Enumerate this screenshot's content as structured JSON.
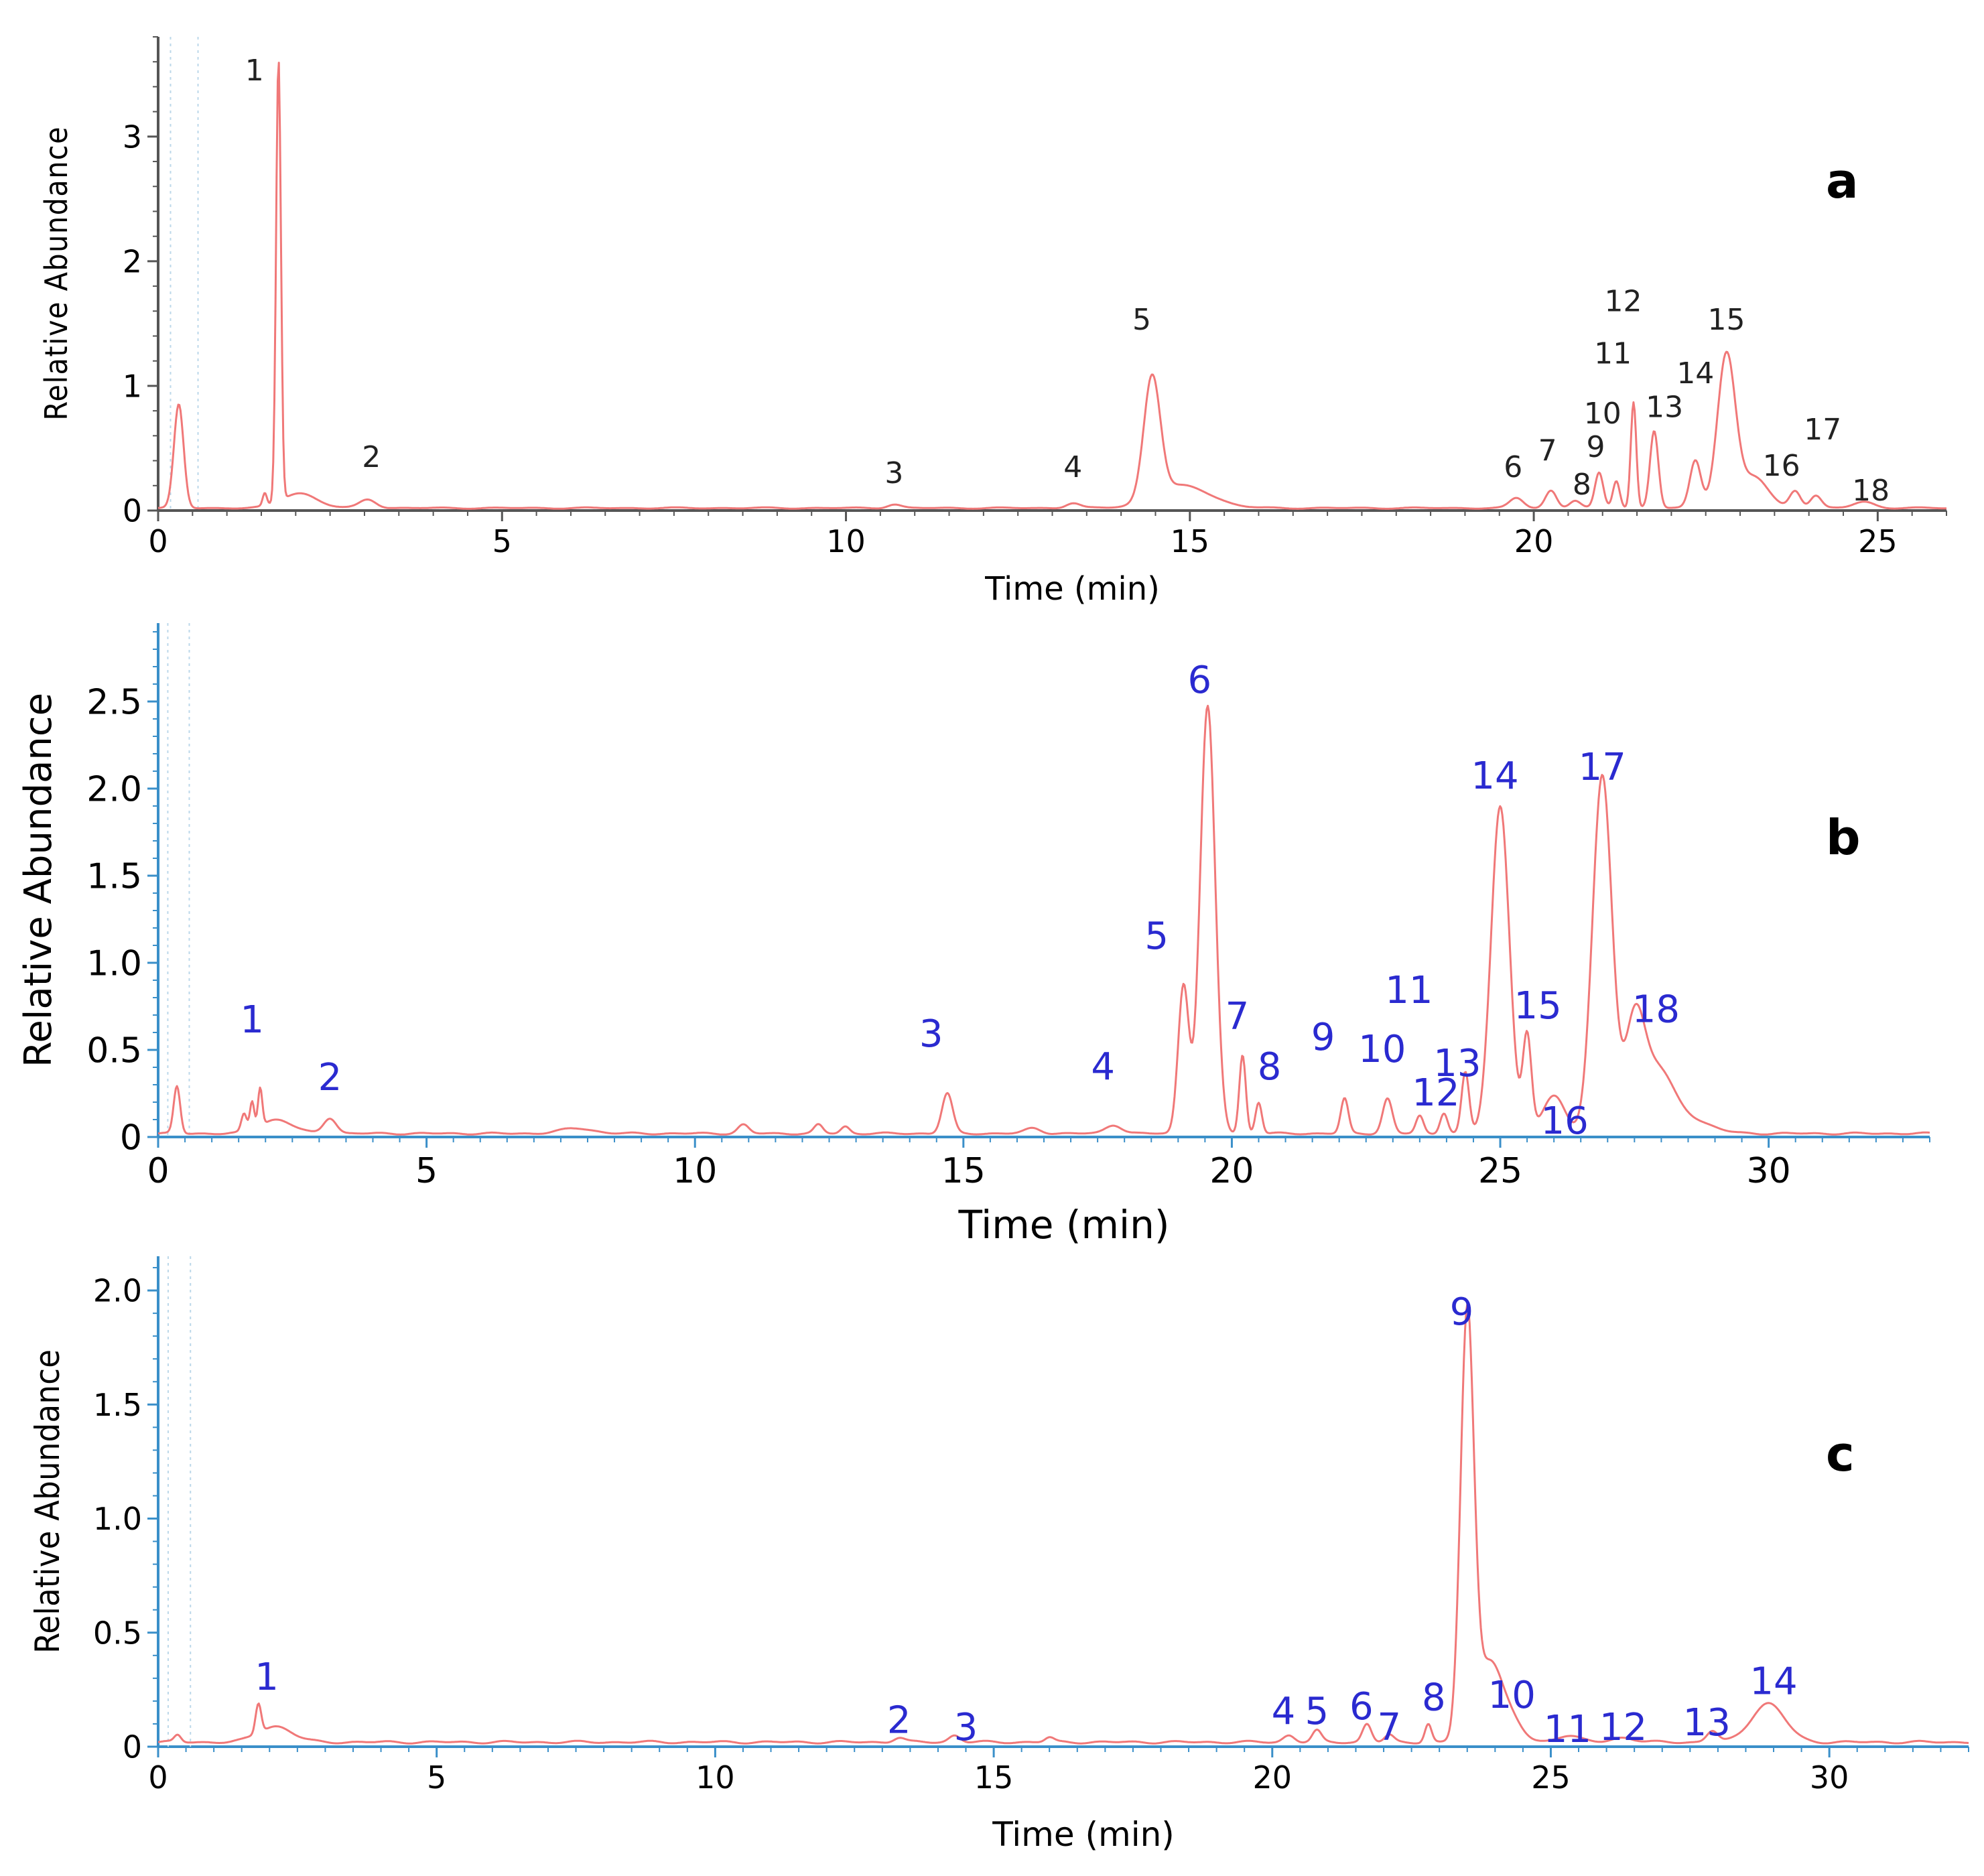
{
  "figure": {
    "panels": [
      "a",
      "b",
      "c"
    ]
  },
  "colors": {
    "trace": "#f07878",
    "axis_a": "#555555",
    "axis_bc": "#3a8fc9",
    "peak_label_a": "#222222",
    "peak_label_bc": "#2a2ad0",
    "panel_letter": "#000000",
    "tick_text": "#000000"
  },
  "chart_data": [
    {
      "id": "a",
      "type": "line",
      "panel_label": "a",
      "title": "",
      "xlabel": "Time (min)",
      "ylabel": "Relative Abundance",
      "xlim": [
        0,
        26
      ],
      "ylim": [
        0,
        3.8
      ],
      "xticks": [
        0,
        5,
        10,
        15,
        20,
        25
      ],
      "xtick_labels": [
        "0",
        "5",
        "10",
        "15",
        "20",
        "25"
      ],
      "yticks": [
        0,
        1,
        2,
        3
      ],
      "ytick_labels": [
        "0",
        "1",
        "2",
        "3"
      ],
      "grid": false,
      "baseline": 0.02,
      "peaks": [
        {
          "t": 0.3,
          "h": 0.83,
          "w": 0.07
        },
        {
          "t": 1.55,
          "h": 0.1,
          "w": 0.03
        },
        {
          "t": 1.75,
          "h": 3.55,
          "w": 0.035
        },
        {
          "t": 2.05,
          "h": 0.12,
          "w": 0.25
        },
        {
          "t": 3.05,
          "h": 0.07,
          "w": 0.12
        },
        {
          "t": 10.7,
          "h": 0.03,
          "w": 0.1
        },
        {
          "t": 13.3,
          "h": 0.04,
          "w": 0.1
        },
        {
          "t": 14.45,
          "h": 0.98,
          "w": 0.12
        },
        {
          "t": 14.9,
          "h": 0.18,
          "w": 0.4
        },
        {
          "t": 19.75,
          "h": 0.08,
          "w": 0.1
        },
        {
          "t": 20.25,
          "h": 0.14,
          "w": 0.08
        },
        {
          "t": 20.6,
          "h": 0.06,
          "w": 0.08
        },
        {
          "t": 20.95,
          "h": 0.28,
          "w": 0.06
        },
        {
          "t": 21.2,
          "h": 0.22,
          "w": 0.05
        },
        {
          "t": 21.45,
          "h": 0.85,
          "w": 0.04
        },
        {
          "t": 21.75,
          "h": 0.62,
          "w": 0.06
        },
        {
          "t": 22.35,
          "h": 0.38,
          "w": 0.08
        },
        {
          "t": 22.8,
          "h": 1.22,
          "w": 0.13
        },
        {
          "t": 23.2,
          "h": 0.25,
          "w": 0.2
        },
        {
          "t": 23.8,
          "h": 0.14,
          "w": 0.08
        },
        {
          "t": 24.1,
          "h": 0.1,
          "w": 0.08
        },
        {
          "t": 24.8,
          "h": 0.05,
          "w": 0.15
        }
      ],
      "peak_labels": [
        {
          "label": "1",
          "x": 1.4,
          "y": 3.45
        },
        {
          "label": "2",
          "x": 3.1,
          "y": 0.35
        },
        {
          "label": "3",
          "x": 10.7,
          "y": 0.22
        },
        {
          "label": "4",
          "x": 13.3,
          "y": 0.27
        },
        {
          "label": "5",
          "x": 14.3,
          "y": 1.45
        },
        {
          "label": "6",
          "x": 19.7,
          "y": 0.27
        },
        {
          "label": "7",
          "x": 20.2,
          "y": 0.4
        },
        {
          "label": "8",
          "x": 20.7,
          "y": 0.13
        },
        {
          "label": "9",
          "x": 20.9,
          "y": 0.43
        },
        {
          "label": "10",
          "x": 21.0,
          "y": 0.7
        },
        {
          "label": "11",
          "x": 21.15,
          "y": 1.18
        },
        {
          "label": "12",
          "x": 21.3,
          "y": 1.6
        },
        {
          "label": "13",
          "x": 21.9,
          "y": 0.75
        },
        {
          "label": "14",
          "x": 22.35,
          "y": 1.02
        },
        {
          "label": "15",
          "x": 22.8,
          "y": 1.45
        },
        {
          "label": "16",
          "x": 23.6,
          "y": 0.28
        },
        {
          "label": "17",
          "x": 24.2,
          "y": 0.57
        },
        {
          "label": "18",
          "x": 24.9,
          "y": 0.08
        }
      ]
    },
    {
      "id": "b",
      "type": "line",
      "panel_label": "b",
      "title": "",
      "xlabel": "Time (min)",
      "ylabel": "Relative Abundance",
      "xlim": [
        0,
        33
      ],
      "ylim": [
        0,
        2.95
      ],
      "xticks": [
        0,
        5,
        10,
        15,
        20,
        25,
        30
      ],
      "xtick_labels": [
        "0",
        "5",
        "10",
        "15",
        "20",
        "25",
        "30"
      ],
      "yticks": [
        0,
        0.5,
        1.0,
        1.5,
        2.0,
        2.5
      ],
      "ytick_labels": [
        "0",
        "0.5",
        "1.0",
        "1.5",
        "2.0",
        "2.5"
      ],
      "grid": false,
      "baseline": 0.02,
      "peaks": [
        {
          "t": 0.35,
          "h": 0.27,
          "w": 0.06
        },
        {
          "t": 1.6,
          "h": 0.1,
          "w": 0.05
        },
        {
          "t": 1.75,
          "h": 0.16,
          "w": 0.04
        },
        {
          "t": 1.9,
          "h": 0.22,
          "w": 0.04
        },
        {
          "t": 2.2,
          "h": 0.08,
          "w": 0.3
        },
        {
          "t": 3.2,
          "h": 0.09,
          "w": 0.12
        },
        {
          "t": 7.8,
          "h": 0.03,
          "w": 0.3
        },
        {
          "t": 10.9,
          "h": 0.05,
          "w": 0.1
        },
        {
          "t": 12.3,
          "h": 0.05,
          "w": 0.08
        },
        {
          "t": 12.8,
          "h": 0.04,
          "w": 0.08
        },
        {
          "t": 14.7,
          "h": 0.23,
          "w": 0.1
        },
        {
          "t": 16.3,
          "h": 0.03,
          "w": 0.15
        },
        {
          "t": 17.8,
          "h": 0.05,
          "w": 0.15
        },
        {
          "t": 19.1,
          "h": 0.85,
          "w": 0.1
        },
        {
          "t": 19.55,
          "h": 2.45,
          "w": 0.14
        },
        {
          "t": 20.2,
          "h": 0.45,
          "w": 0.06
        },
        {
          "t": 20.5,
          "h": 0.18,
          "w": 0.06
        },
        {
          "t": 22.1,
          "h": 0.2,
          "w": 0.07
        },
        {
          "t": 22.9,
          "h": 0.2,
          "w": 0.09
        },
        {
          "t": 23.5,
          "h": 0.1,
          "w": 0.07
        },
        {
          "t": 23.95,
          "h": 0.12,
          "w": 0.07
        },
        {
          "t": 24.35,
          "h": 0.35,
          "w": 0.07
        },
        {
          "t": 25.0,
          "h": 1.88,
          "w": 0.17
        },
        {
          "t": 25.5,
          "h": 0.55,
          "w": 0.08
        },
        {
          "t": 26.0,
          "h": 0.22,
          "w": 0.2
        },
        {
          "t": 26.9,
          "h": 2.05,
          "w": 0.18
        },
        {
          "t": 27.5,
          "h": 0.58,
          "w": 0.18
        },
        {
          "t": 27.9,
          "h": 0.35,
          "w": 0.3
        },
        {
          "t": 28.5,
          "h": 0.08,
          "w": 0.4
        }
      ],
      "peak_labels": [
        {
          "label": "1",
          "x": 1.75,
          "y": 0.6
        },
        {
          "label": "2",
          "x": 3.2,
          "y": 0.27
        },
        {
          "label": "3",
          "x": 14.4,
          "y": 0.52
        },
        {
          "label": "4",
          "x": 17.6,
          "y": 0.33
        },
        {
          "label": "5",
          "x": 18.6,
          "y": 1.08
        },
        {
          "label": "6",
          "x": 19.4,
          "y": 2.55
        },
        {
          "label": "7",
          "x": 20.1,
          "y": 0.62
        },
        {
          "label": "8",
          "x": 20.7,
          "y": 0.33
        },
        {
          "label": "9",
          "x": 21.7,
          "y": 0.5
        },
        {
          "label": "10",
          "x": 22.8,
          "y": 0.43
        },
        {
          "label": "11",
          "x": 23.3,
          "y": 0.77
        },
        {
          "label": "12",
          "x": 23.8,
          "y": 0.18
        },
        {
          "label": "13",
          "x": 24.2,
          "y": 0.35
        },
        {
          "label": "14",
          "x": 24.9,
          "y": 2.0
        },
        {
          "label": "15",
          "x": 25.7,
          "y": 0.68
        },
        {
          "label": "16",
          "x": 26.2,
          "y": 0.02
        },
        {
          "label": "17",
          "x": 26.9,
          "y": 2.05
        },
        {
          "label": "18",
          "x": 27.9,
          "y": 0.66
        }
      ]
    },
    {
      "id": "c",
      "type": "line",
      "panel_label": "c",
      "title": "",
      "xlabel": "Time (min)",
      "ylabel": "Relative Abundance",
      "xlim": [
        0,
        32.5
      ],
      "ylim": [
        0,
        2.15
      ],
      "xticks": [
        0,
        5,
        10,
        15,
        20,
        25,
        30
      ],
      "xtick_labels": [
        "0",
        "5",
        "10",
        "15",
        "20",
        "25",
        "30"
      ],
      "yticks": [
        0,
        0.5,
        1.0,
        1.5,
        2.0
      ],
      "ytick_labels": [
        "0",
        "0.5",
        "1.0",
        "1.5",
        "2.0"
      ],
      "grid": false,
      "baseline": 0.02,
      "peaks": [
        {
          "t": 0.35,
          "h": 0.03,
          "w": 0.06
        },
        {
          "t": 1.8,
          "h": 0.13,
          "w": 0.05
        },
        {
          "t": 2.1,
          "h": 0.07,
          "w": 0.3
        },
        {
          "t": 13.3,
          "h": 0.02,
          "w": 0.1
        },
        {
          "t": 14.3,
          "h": 0.03,
          "w": 0.1
        },
        {
          "t": 16.0,
          "h": 0.02,
          "w": 0.08
        },
        {
          "t": 20.3,
          "h": 0.03,
          "w": 0.1
        },
        {
          "t": 20.8,
          "h": 0.05,
          "w": 0.08
        },
        {
          "t": 21.7,
          "h": 0.08,
          "w": 0.08
        },
        {
          "t": 22.1,
          "h": 0.03,
          "w": 0.08
        },
        {
          "t": 22.8,
          "h": 0.08,
          "w": 0.06
        },
        {
          "t": 23.5,
          "h": 1.85,
          "w": 0.12
        },
        {
          "t": 23.9,
          "h": 0.35,
          "w": 0.22
        },
        {
          "t": 24.3,
          "h": 0.08,
          "w": 0.2
        },
        {
          "t": 25.3,
          "h": 0.03,
          "w": 0.2
        },
        {
          "t": 26.3,
          "h": 0.02,
          "w": 0.2
        },
        {
          "t": 27.9,
          "h": 0.05,
          "w": 0.1
        },
        {
          "t": 28.9,
          "h": 0.17,
          "w": 0.3
        }
      ],
      "peak_labels": [
        {
          "label": "1",
          "x": 1.95,
          "y": 0.25
        },
        {
          "label": "2",
          "x": 13.3,
          "y": 0.06
        },
        {
          "label": "3",
          "x": 14.5,
          "y": 0.03
        },
        {
          "label": "4",
          "x": 20.2,
          "y": 0.1
        },
        {
          "label": "5",
          "x": 20.8,
          "y": 0.1
        },
        {
          "label": "6",
          "x": 21.6,
          "y": 0.12
        },
        {
          "label": "7",
          "x": 22.1,
          "y": 0.03
        },
        {
          "label": "8",
          "x": 22.9,
          "y": 0.16
        },
        {
          "label": "9",
          "x": 23.4,
          "y": 1.85
        },
        {
          "label": "10",
          "x": 24.3,
          "y": 0.17
        },
        {
          "label": "11",
          "x": 25.3,
          "y": 0.02
        },
        {
          "label": "12",
          "x": 26.3,
          "y": 0.03
        },
        {
          "label": "13",
          "x": 27.8,
          "y": 0.05
        },
        {
          "label": "14",
          "x": 29.0,
          "y": 0.23
        }
      ]
    }
  ]
}
